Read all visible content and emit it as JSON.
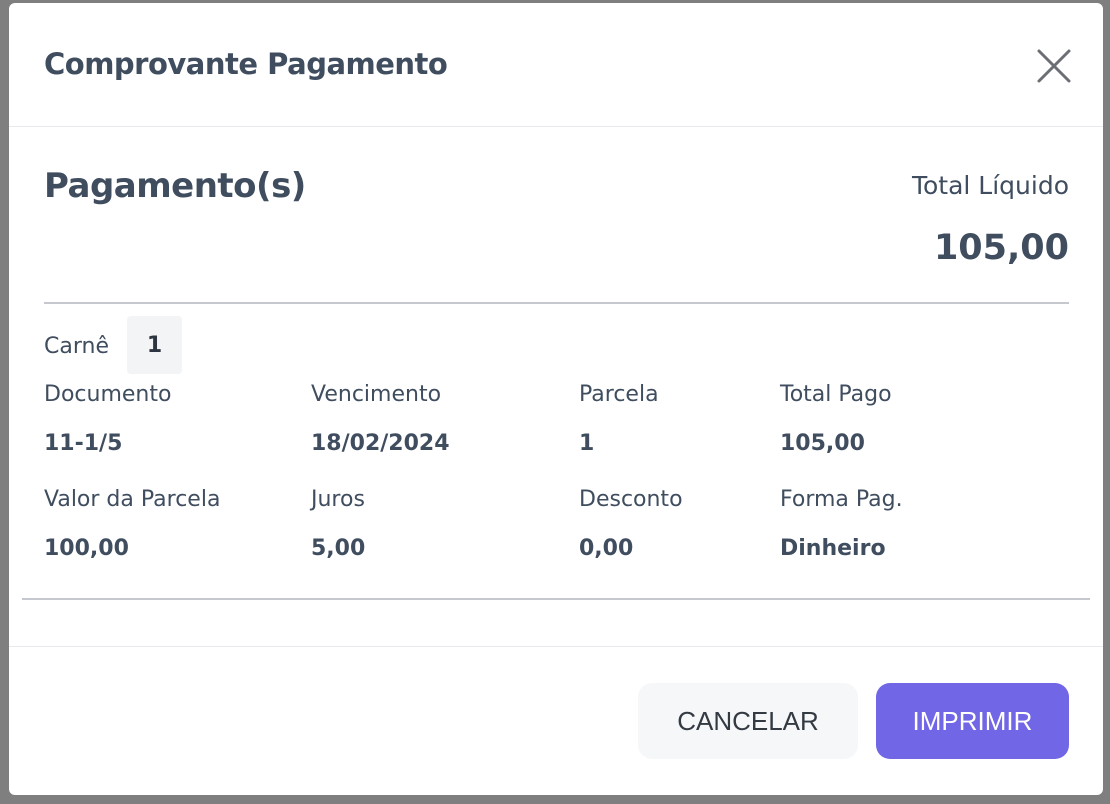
{
  "modal": {
    "title": "Comprovante Pagamento",
    "close_icon": "close-icon"
  },
  "body": {
    "heading": "Pagamento(s)",
    "total_label": "Total Líquido",
    "total_value": "105,00",
    "carne_label": "Carnê",
    "carne_value": "1",
    "fields": [
      {
        "label": "Documento",
        "value": "11-1/5"
      },
      {
        "label": "Vencimento",
        "value": "18/02/2024"
      },
      {
        "label": "Parcela",
        "value": "1"
      },
      {
        "label": "Total Pago",
        "value": "105,00"
      },
      {
        "label": "Valor da Parcela",
        "value": "100,00"
      },
      {
        "label": "Juros",
        "value": "5,00"
      },
      {
        "label": "Desconto",
        "value": "0,00"
      },
      {
        "label": "Forma Pag.",
        "value": "Dinheiro"
      }
    ]
  },
  "footer": {
    "cancel_label": "CANCELAR",
    "print_label": "IMPRIMIR"
  },
  "colors": {
    "accent": "#7166e5",
    "text": "#3f4d5f",
    "overlay": "#7f7f7f"
  }
}
